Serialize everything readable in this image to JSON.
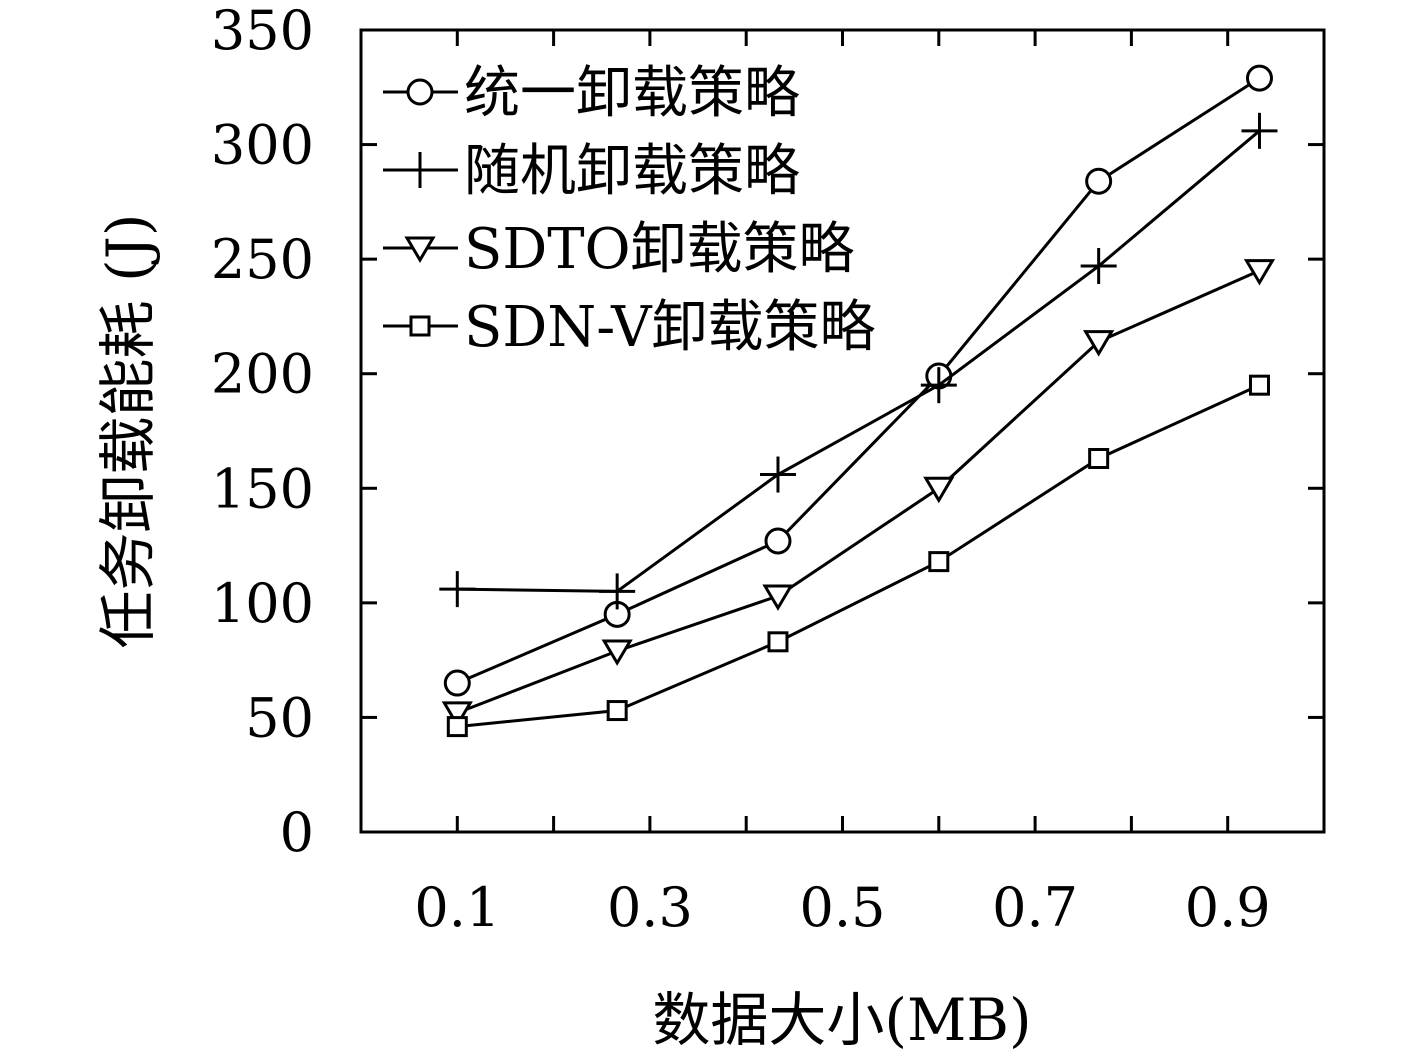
{
  "chart_data": {
    "type": "line",
    "xlabel": "数据大小(MB)",
    "ylabel": "任务卸载能耗 (J)",
    "x": [
      0.1,
      0.266,
      0.433,
      0.6,
      0.766,
      0.933
    ],
    "xlim": [
      0.0,
      1.0
    ],
    "ylim": [
      0,
      350
    ],
    "xticks": [
      0.1,
      0.2,
      0.3,
      0.4,
      0.5,
      0.6,
      0.7,
      0.8,
      0.9
    ],
    "xtick_labels": [
      "0.1",
      "",
      "0.3",
      "",
      "0.5",
      "",
      "0.7",
      "",
      "0.9"
    ],
    "yticks": [
      0,
      50,
      100,
      150,
      200,
      250,
      300,
      350
    ],
    "ytick_labels": [
      "0",
      "50",
      "100",
      "150",
      "200",
      "250",
      "300",
      "350"
    ],
    "grid": false,
    "legend_position": "top-left",
    "series": [
      {
        "name": "统一卸载策略",
        "marker": "circle",
        "values": [
          65,
          95,
          127,
          199,
          284,
          329
        ]
      },
      {
        "name": "随机卸载策略",
        "marker": "plus",
        "values": [
          106,
          105,
          156,
          195,
          247,
          306
        ]
      },
      {
        "name": "SDTO卸载策略",
        "marker": "triangle-down",
        "values": [
          52,
          79,
          103,
          150,
          214,
          245
        ]
      },
      {
        "name": "SDN-V卸载策略",
        "marker": "square",
        "values": [
          46,
          53,
          83,
          118,
          163,
          195
        ]
      }
    ]
  }
}
